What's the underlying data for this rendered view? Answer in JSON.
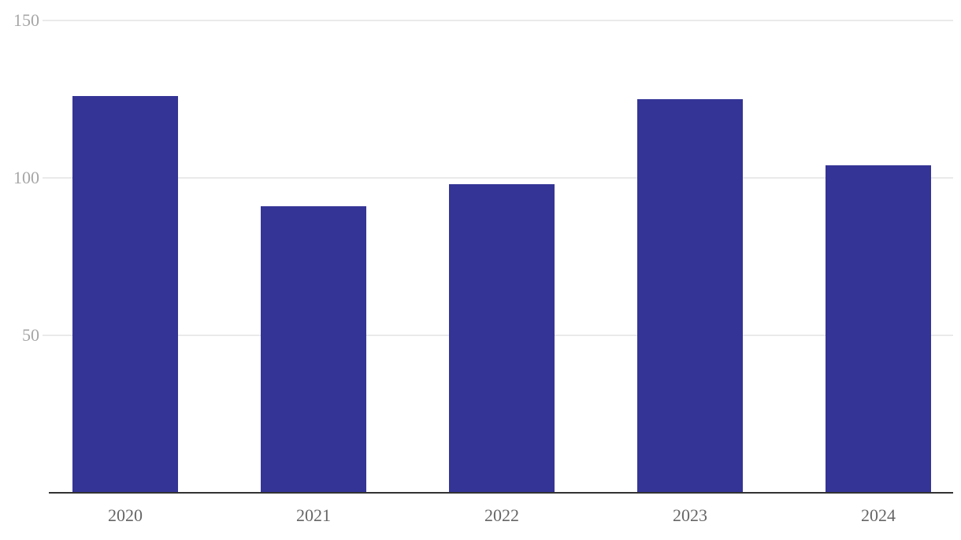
{
  "chart_data": {
    "type": "bar",
    "categories": [
      "2020",
      "2021",
      "2022",
      "2023",
      "2024"
    ],
    "values": [
      126,
      91,
      98,
      125,
      104
    ],
    "color": "#343496",
    "ylim": [
      0,
      150
    ],
    "yticks": [
      50,
      100,
      150
    ],
    "grid": true
  }
}
